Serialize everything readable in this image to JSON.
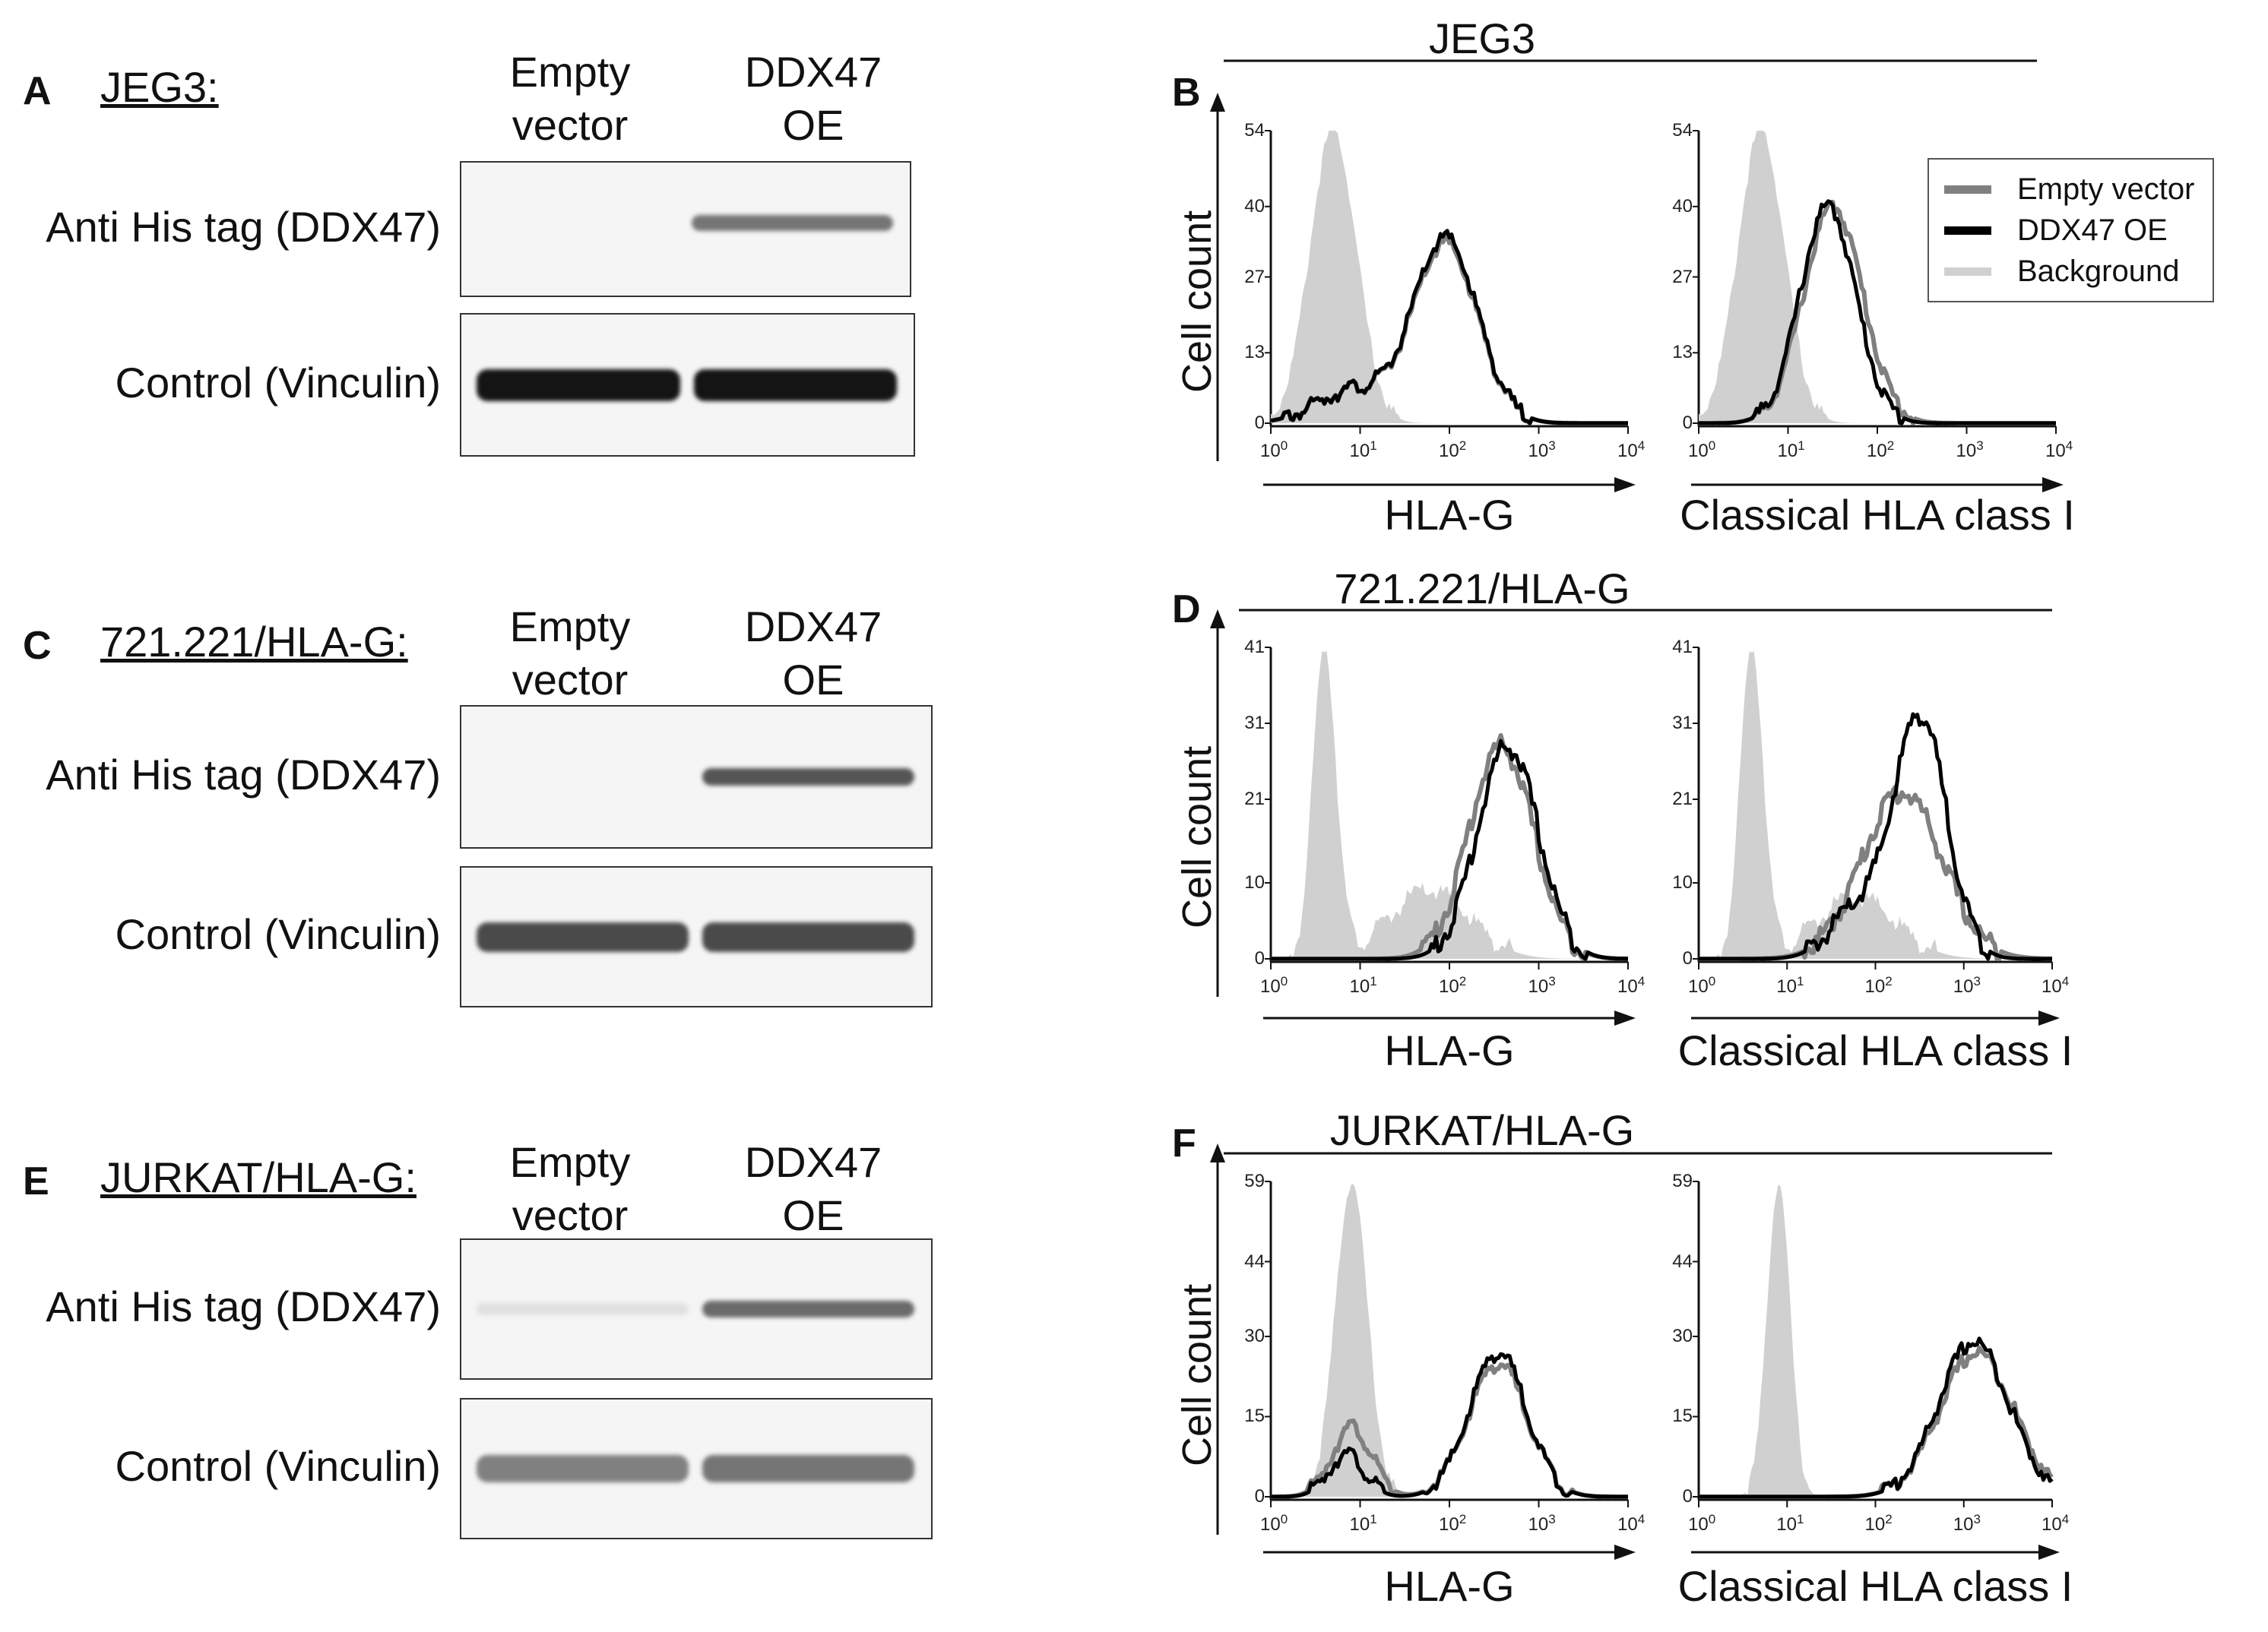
{
  "westerns": [
    {
      "letter": "A",
      "cell": "JEG3:",
      "lanes": [
        "Empty\nvector",
        "DDX47\nOE"
      ],
      "rows": [
        {
          "label": "Anti His tag (DDX47)",
          "band_intensity": [
            0.0,
            0.55
          ]
        },
        {
          "label": "Control (Vinculin)",
          "band_intensity": [
            1.0,
            1.0
          ]
        }
      ]
    },
    {
      "letter": "C",
      "cell": "721.221/HLA-G:",
      "lanes": [
        "Empty\nvector",
        "DDX47\nOE"
      ],
      "rows": [
        {
          "label": "Anti His tag (DDX47)",
          "band_intensity": [
            0.0,
            0.7
          ]
        },
        {
          "label": "Control (Vinculin)",
          "band_intensity": [
            0.75,
            0.75
          ]
        }
      ]
    },
    {
      "letter": "E",
      "cell": "JURKAT/HLA-G:",
      "lanes": [
        "Empty\nvector",
        "DDX47\nOE"
      ],
      "rows": [
        {
          "label": "Anti His tag (DDX47)",
          "band_intensity": [
            0.05,
            0.6
          ]
        },
        {
          "label": "Control (Vinculin)",
          "band_intensity": [
            0.5,
            0.55
          ]
        }
      ]
    }
  ],
  "legend": [
    {
      "label": "Empty vector",
      "color": "#808080"
    },
    {
      "label": "DDX47 OE",
      "color": "#000000"
    },
    {
      "label": "Background",
      "color": "#d0d0d0"
    }
  ],
  "x_tick_base": "10",
  "x_tick_exponents": [
    "0",
    "1",
    "2",
    "3",
    "4"
  ],
  "chart_data": [
    {
      "panel": "B",
      "section": "JEG3",
      "type": "area",
      "xscale": "log",
      "xlim": [
        1,
        10000
      ],
      "xlabel": "HLA-G",
      "ylabel": "Cell count",
      "yticks": [
        "0",
        "13",
        "27",
        "40",
        "54"
      ],
      "ylim": [
        0,
        54
      ],
      "show_ylabel": true,
      "show_panel_letter": true,
      "series": [
        {
          "name": "Background",
          "peaks": [
            [
              5,
              54,
              0.26
            ]
          ]
        },
        {
          "name": "Empty vector",
          "peaks": [
            [
              90,
              33,
              0.36
            ],
            [
              8,
              6,
              0.4
            ]
          ]
        },
        {
          "name": "DDX47 OE",
          "peaks": [
            [
              90,
              34,
              0.36
            ],
            [
              8,
              6,
              0.4
            ]
          ]
        }
      ]
    },
    {
      "panel": "",
      "section": "JEG3",
      "type": "area",
      "xscale": "log",
      "xlim": [
        1,
        10000
      ],
      "xlabel": "Classical HLA class I",
      "ylabel": "",
      "yticks": [
        "0",
        "13",
        "27",
        "40",
        "54"
      ],
      "ylim": [
        0,
        54
      ],
      "show_ylabel": false,
      "show_panel_letter": false,
      "series": [
        {
          "name": "Background",
          "peaks": [
            [
              5,
              54,
              0.26
            ]
          ]
        },
        {
          "name": "Empty vector",
          "peaks": [
            [
              32,
              40,
              0.33
            ]
          ]
        },
        {
          "name": "DDX47 OE",
          "peaks": [
            [
              28,
              40,
              0.31
            ]
          ]
        }
      ]
    },
    {
      "panel": "D",
      "section": "721.221/HLA-G",
      "type": "area",
      "xscale": "log",
      "xlim": [
        1,
        10000
      ],
      "xlabel": "HLA-G",
      "ylabel": "Cell count",
      "yticks": [
        "0",
        "10",
        "21",
        "31",
        "41"
      ],
      "ylim": [
        0,
        41
      ],
      "show_ylabel": true,
      "show_panel_letter": true,
      "series": [
        {
          "name": "Background",
          "peaks": [
            [
              4,
              41,
              0.13
            ],
            [
              60,
              9,
              0.45
            ]
          ]
        },
        {
          "name": "Empty vector",
          "peaks": [
            [
              380,
              28,
              0.36
            ]
          ]
        },
        {
          "name": "DDX47 OE",
          "peaks": [
            [
              450,
              28,
              0.34
            ]
          ]
        }
      ]
    },
    {
      "panel": "",
      "section": "721.221/HLA-G",
      "type": "area",
      "xscale": "log",
      "xlim": [
        1,
        10000
      ],
      "xlabel": "Classical HLA class I",
      "ylabel": "",
      "yticks": [
        "0",
        "10",
        "21",
        "31",
        "41"
      ],
      "ylim": [
        0,
        41
      ],
      "show_ylabel": false,
      "show_panel_letter": false,
      "series": [
        {
          "name": "Background",
          "peaks": [
            [
              4,
              41,
              0.13
            ],
            [
              60,
              8,
              0.45
            ]
          ]
        },
        {
          "name": "Empty vector",
          "peaks": [
            [
              200,
              22,
              0.45
            ]
          ]
        },
        {
          "name": "DDX47 OE",
          "peaks": [
            [
              320,
              32,
              0.3
            ],
            [
              60,
              6,
              0.3
            ]
          ]
        }
      ]
    },
    {
      "panel": "F",
      "section": "JURKAT/HLA-G",
      "type": "area",
      "xscale": "log",
      "xlim": [
        1,
        10000
      ],
      "xlabel": "HLA-G",
      "ylabel": "Cell count",
      "yticks": [
        "0",
        "15",
        "30",
        "44",
        "59"
      ],
      "ylim": [
        0,
        59
      ],
      "show_ylabel": true,
      "show_panel_letter": true,
      "series": [
        {
          "name": "Background",
          "peaks": [
            [
              8,
              59,
              0.18
            ]
          ]
        },
        {
          "name": "Empty vector",
          "peaks": [
            [
              8,
              13,
              0.22
            ],
            [
              350,
              25,
              0.33
            ]
          ]
        },
        {
          "name": "DDX47 OE",
          "peaks": [
            [
              7,
              8,
              0.2
            ],
            [
              350,
              27,
              0.32
            ]
          ]
        }
      ]
    },
    {
      "panel": "",
      "section": "JURKAT/HLA-G",
      "type": "area",
      "xscale": "log",
      "xlim": [
        1,
        10000
      ],
      "xlabel": "Classical HLA class I",
      "ylabel": "",
      "yticks": [
        "0",
        "15",
        "30",
        "44",
        "59"
      ],
      "ylim": [
        0,
        59
      ],
      "show_ylabel": false,
      "show_panel_letter": false,
      "series": [
        {
          "name": "Background",
          "peaks": [
            [
              8,
              59,
              0.13
            ]
          ]
        },
        {
          "name": "Empty vector",
          "peaks": [
            [
              1400,
              27,
              0.42
            ]
          ]
        },
        {
          "name": "DDX47 OE",
          "peaks": [
            [
              1300,
              29,
              0.4
            ]
          ]
        }
      ]
    }
  ],
  "sections": [
    "JEG3",
    "721.221/HLA-G",
    "JURKAT/HLA-G"
  ]
}
